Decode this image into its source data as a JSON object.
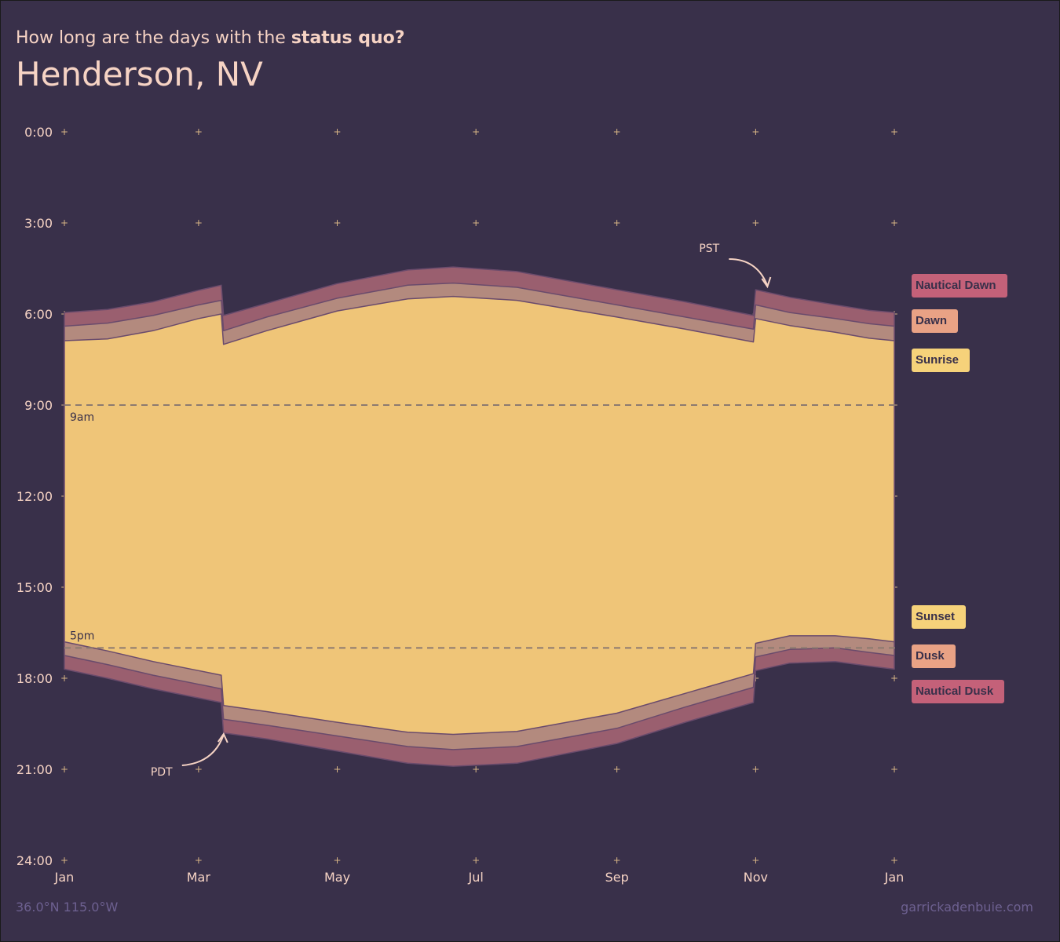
{
  "header": {
    "subtitle_prefix": "How long are the days with the ",
    "subtitle_emphasis": "status quo?",
    "title": "Henderson, NV"
  },
  "footer": {
    "coordinates": "36.0°N 115.0°W",
    "credit": "garrickadenbuie.com"
  },
  "legend": [
    {
      "label": "Nautical Dawn",
      "color": "#c46179",
      "key": "nautical_dawn"
    },
    {
      "label": "Dawn",
      "color": "#e9a285",
      "key": "dawn"
    },
    {
      "label": "Sunrise",
      "color": "#f6d27a",
      "key": "sunrise"
    },
    {
      "label": "Sunset",
      "color": "#f6d27a",
      "key": "sunset"
    },
    {
      "label": "Dusk",
      "color": "#e9a285",
      "key": "dusk"
    },
    {
      "label": "Nautical Dusk",
      "color": "#c46179",
      "key": "nautical_dusk"
    }
  ],
  "colors": {
    "background": "#39304a",
    "daylight": "#efc578",
    "twilight_band": "#b38a7e",
    "nautical_band": "#9a5f6f",
    "band_outline": "#6a4b6c",
    "reference_line": "#8c7a70",
    "tick_mark": "#d8b585",
    "label_text": "#f6d3c4"
  },
  "chart_data": {
    "type": "area",
    "title": "Henderson, NV",
    "subtitle": "How long are the days with the status quo?",
    "x_axis": {
      "labels": [
        "Jan",
        "Mar",
        "May",
        "Jul",
        "Sep",
        "Nov",
        "Jan"
      ],
      "day_of_year": [
        1,
        60,
        121,
        182,
        244,
        305,
        366
      ]
    },
    "y_axis": {
      "labels": [
        "0:00",
        "3:00",
        "6:00",
        "9:00",
        "12:00",
        "15:00",
        "18:00",
        "21:00",
        "24:00"
      ],
      "hours": [
        0,
        3,
        6,
        9,
        12,
        15,
        18,
        21,
        24
      ],
      "ylim": [
        0,
        24
      ],
      "inverted": true
    },
    "reference_lines": [
      {
        "label": "9am",
        "hour": 9
      },
      {
        "label": "5pm",
        "hour": 17
      }
    ],
    "annotations": [
      {
        "label": "PST",
        "day_of_year": 305
      },
      {
        "label": "PDT",
        "day_of_year": 70
      }
    ],
    "series_days": [
      1,
      20,
      40,
      60,
      70,
      71,
      90,
      121,
      152,
      172,
      200,
      244,
      274,
      304,
      305,
      320,
      340,
      355,
      366
    ],
    "series": [
      {
        "name": "Nautical Dawn",
        "values": [
          5.95,
          5.85,
          5.6,
          5.22,
          5.05,
          6.05,
          5.65,
          5.0,
          4.55,
          4.45,
          4.6,
          5.2,
          5.6,
          6.05,
          5.2,
          5.45,
          5.7,
          5.88,
          5.95
        ]
      },
      {
        "name": "Dawn",
        "values": [
          6.4,
          6.3,
          6.05,
          5.7,
          5.55,
          6.55,
          6.1,
          5.48,
          5.05,
          4.98,
          5.12,
          5.7,
          6.1,
          6.5,
          5.7,
          5.95,
          6.15,
          6.32,
          6.4
        ]
      },
      {
        "name": "Sunrise",
        "values": [
          6.88,
          6.82,
          6.55,
          6.15,
          6.0,
          7.0,
          6.55,
          5.9,
          5.5,
          5.42,
          5.55,
          6.1,
          6.5,
          6.92,
          6.15,
          6.38,
          6.6,
          6.8,
          6.88
        ]
      },
      {
        "name": "Sunset",
        "values": [
          16.8,
          17.1,
          17.45,
          17.75,
          17.9,
          18.9,
          19.1,
          19.45,
          19.78,
          19.85,
          19.75,
          19.15,
          18.5,
          17.85,
          16.85,
          16.6,
          16.6,
          16.7,
          16.8
        ]
      },
      {
        "name": "Dusk",
        "values": [
          17.25,
          17.55,
          17.9,
          18.2,
          18.35,
          19.35,
          19.55,
          19.9,
          20.25,
          20.35,
          20.25,
          19.65,
          18.95,
          18.3,
          17.3,
          17.05,
          17.0,
          17.15,
          17.25
        ]
      },
      {
        "name": "Nautical Dusk",
        "values": [
          17.7,
          18.0,
          18.35,
          18.65,
          18.8,
          19.8,
          20.0,
          20.4,
          20.8,
          20.9,
          20.8,
          20.15,
          19.45,
          18.8,
          17.75,
          17.5,
          17.45,
          17.6,
          17.7
        ]
      }
    ]
  }
}
